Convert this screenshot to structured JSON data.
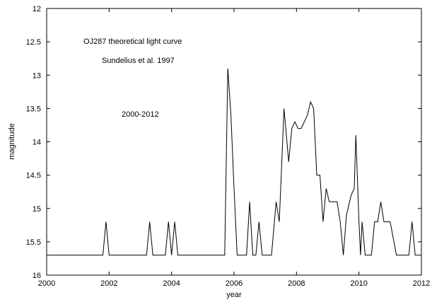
{
  "chart_data": {
    "type": "line",
    "xlabel": "year",
    "ylabel": "magnitude",
    "xlim": [
      2000,
      2012
    ],
    "ylim": [
      12,
      16
    ],
    "y_inverted": true,
    "grid": false,
    "line_color": "#000000",
    "xticks": [
      "2000",
      "2002",
      "2004",
      "2006",
      "2008",
      "2010",
      "2012"
    ],
    "yticks": [
      "12",
      "12.5",
      "13",
      "13.5",
      "14",
      "14.5",
      "15",
      "15.5",
      "16"
    ],
    "annotations": [
      "OJ287 theoretical light curve",
      "Sundelius et al. 1997",
      "2000-2012"
    ],
    "series": [
      {
        "x": [
          2000.0,
          2001.8,
          2001.9,
          2002.0,
          2003.2,
          2003.3,
          2003.4,
          2003.8,
          2003.9,
          2004.0,
          2004.1,
          2004.2,
          2005.7,
          2005.8,
          2005.9,
          2006.0,
          2006.1,
          2006.2,
          2006.4,
          2006.5,
          2006.6,
          2006.7,
          2006.8,
          2006.9,
          2007.2,
          2007.35,
          2007.45,
          2007.6,
          2007.75,
          2007.85,
          2007.95,
          2008.05,
          2008.15,
          2008.35,
          2008.45,
          2008.55,
          2008.65,
          2008.75,
          2008.85,
          2008.95,
          2009.05,
          2009.15,
          2009.3,
          2009.4,
          2009.5,
          2009.6,
          2009.75,
          2009.85,
          2009.9,
          2010.0,
          2010.05,
          2010.1,
          2010.2,
          2010.4,
          2010.5,
          2010.6,
          2010.7,
          2010.8,
          2011.0,
          2011.2,
          2011.6,
          2011.7,
          2011.8,
          2012.0
        ],
        "y": [
          15.7,
          15.7,
          15.2,
          15.7,
          15.7,
          15.2,
          15.7,
          15.7,
          15.2,
          15.7,
          15.2,
          15.7,
          15.7,
          12.9,
          13.6,
          14.7,
          15.7,
          15.7,
          15.7,
          14.9,
          15.7,
          15.7,
          15.2,
          15.7,
          15.7,
          14.9,
          15.2,
          13.5,
          14.3,
          13.8,
          13.7,
          13.8,
          13.8,
          13.6,
          13.4,
          13.5,
          14.5,
          14.5,
          15.2,
          14.7,
          14.9,
          14.9,
          14.9,
          15.2,
          15.7,
          15.1,
          14.8,
          14.7,
          13.9,
          15.2,
          15.7,
          15.2,
          15.7,
          15.7,
          15.2,
          15.2,
          14.9,
          15.2,
          15.2,
          15.7,
          15.7,
          15.2,
          15.7,
          15.7
        ]
      }
    ]
  }
}
